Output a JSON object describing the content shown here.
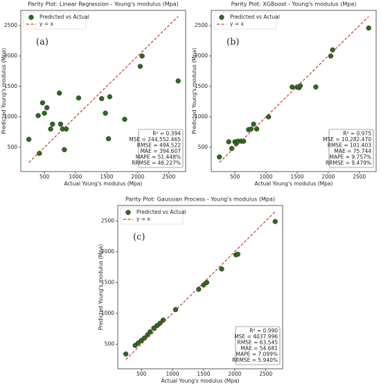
{
  "chart_data": [
    {
      "type": "scatter",
      "title": "Parity Plot: Linear Regression - Young's modulus  (Mpa)",
      "annotation": "(a)",
      "x_label": "Actual Young's modulus  (Mpa)",
      "y_label": "Predicted Young's modulus  (Mpa)",
      "xlim": [
        120,
        2770
      ],
      "ylim": [
        100,
        2750
      ],
      "xticks": [
        500,
        1000,
        1500,
        2000,
        2500
      ],
      "yticks": [
        500,
        1000,
        1500,
        2000,
        2500
      ],
      "legend": "upper left",
      "series": [
        {
          "name": "Predicted vs Actual",
          "type": "scatter",
          "color": "#2d6a1f",
          "x": [
            250,
            400,
            420,
            470,
            500,
            540,
            600,
            630,
            740,
            760,
            790,
            820,
            850,
            1050,
            1420,
            1480,
            1530,
            1550,
            1790,
            2040,
            2070,
            2650
          ],
          "values": [
            630,
            1020,
            400,
            1230,
            1060,
            1150,
            800,
            880,
            1390,
            880,
            800,
            460,
            800,
            1310,
            1300,
            1060,
            640,
            1330,
            960,
            1830,
            2000,
            1590
          ]
        },
        {
          "name": "y = x",
          "type": "line",
          "color": "#c0392b",
          "x": [
            250,
            2650
          ],
          "values": [
            250,
            2650
          ]
        }
      ],
      "stats": [
        "R² = 0.394",
        "MSE = 244,552.465",
        "RMSE = 494.522",
        "MAE = 394.607",
        "MAPE = 51.448%",
        "RRMSE = 46.227%"
      ]
    },
    {
      "type": "scatter",
      "title": "Parity Plot: XGBoost - Young's modulus  (Mpa)",
      "annotation": "(b)",
      "x_label": "Actual Young's modulus  (Mpa)",
      "y_label": "Predicted Young's modulus  (Mpa)",
      "xlim": [
        120,
        2770
      ],
      "ylim": [
        100,
        2750
      ],
      "xticks": [
        500,
        1000,
        1500,
        2000,
        2500
      ],
      "yticks": [
        500,
        1000,
        1500,
        2000,
        2500
      ],
      "legend": "upper left",
      "series": [
        {
          "name": "Predicted vs Actual",
          "type": "scatter",
          "color": "#2d6a1f",
          "x": [
            250,
            400,
            450,
            500,
            520,
            550,
            600,
            640,
            720,
            760,
            800,
            850,
            1040,
            1420,
            1500,
            1530,
            1550,
            1800,
            2040,
            2070,
            2650
          ],
          "values": [
            340,
            590,
            480,
            590,
            560,
            600,
            600,
            600,
            790,
            800,
            880,
            800,
            1000,
            1490,
            1490,
            1480,
            1510,
            1490,
            2000,
            2100,
            2460
          ]
        },
        {
          "name": "y = x",
          "type": "line",
          "color": "#c0392b",
          "x": [
            250,
            2650
          ],
          "values": [
            250,
            2650
          ]
        }
      ],
      "stats": [
        "R² = 0.975",
        "MSE = 10,282.470",
        "RMSE = 101.403",
        "MAE = 75.744",
        "MAPE = 9.757%",
        "RRMSE = 9.479%"
      ]
    },
    {
      "type": "scatter",
      "title": "Parity Plot: Gaussian Process - Young's modulus  (Mpa)",
      "annotation": "(c)",
      "x_label": "Actual Young's modulus  (Mpa)",
      "y_label": "Predicted Young's modulus  (Mpa)",
      "xlim": [
        120,
        2770
      ],
      "ylim": [
        100,
        2750
      ],
      "xticks": [
        500,
        1000,
        1500,
        2000,
        2500
      ],
      "yticks": [
        500,
        1000,
        1500,
        2000,
        2500
      ],
      "legend": "upper left",
      "series": [
        {
          "name": "Predicted vs Actual",
          "type": "scatter",
          "color": "#2d6a1f",
          "x": [
            250,
            400,
            450,
            500,
            550,
            600,
            640,
            700,
            750,
            800,
            850,
            1050,
            1420,
            1500,
            1550,
            1790,
            2020,
            2050,
            2650
          ],
          "values": [
            340,
            480,
            520,
            560,
            600,
            650,
            700,
            760,
            800,
            840,
            890,
            1060,
            1390,
            1460,
            1500,
            1720,
            1950,
            1960,
            2490
          ]
        },
        {
          "name": "y = x",
          "type": "line",
          "color": "#c0392b",
          "x": [
            250,
            2650
          ],
          "values": [
            250,
            2650
          ]
        }
      ],
      "stats": [
        "R² = 0.990",
        "MSE = 4037.996",
        "RMSE = 63.545",
        "MAE = 54.681",
        "MAPE = 7.099%",
        "RRMSE = 5.940%"
      ]
    }
  ]
}
